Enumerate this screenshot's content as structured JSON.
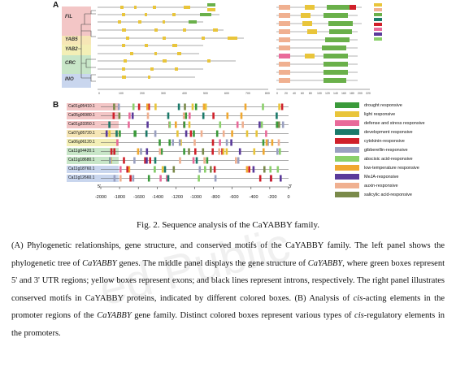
{
  "figure": {
    "panel_a_label": "A",
    "panel_b_label": "B",
    "clades": [
      "FIL",
      "YAB5",
      "YAB2",
      "CRC",
      "INO"
    ],
    "clade_colors": [
      "#f3c6c6",
      "#f6e6b6",
      "#f3efb6",
      "#c8e6c8",
      "#c9d6ee"
    ],
    "tree_scale_labels": [
      "0",
      "100",
      "200",
      "300",
      "400",
      "500",
      "600",
      "700",
      "800"
    ],
    "motif_scale_labels": [
      "0",
      "20",
      "40",
      "60",
      "80",
      "100",
      "120",
      "140",
      "160",
      "180",
      "200",
      "220"
    ],
    "gene_ids": [
      "Ca01g05410.1",
      "Ca05g06980.1",
      "Ca01g33350.1",
      "Ca07g05720.1",
      "Ca06g06120.1",
      "Ca11g04420.1",
      "Ca11g18680.1",
      "Ca11g18760.1",
      "Ca11g12660.1"
    ],
    "gene_label_colors": [
      "#f3c6c6",
      "#f3c6c6",
      "#f3c6c6",
      "#f6e6b6",
      "#f3efb6",
      "#c8e6c8",
      "#c8e6c8",
      "#c9d6ee",
      "#c9d6ee"
    ],
    "legend": [
      {
        "label": "drought responsive",
        "color": "#3a9a3a"
      },
      {
        "label": "light responsive",
        "color": "#e9c53a"
      },
      {
        "label": "defense and stress responsive",
        "color": "#e96a9a"
      },
      {
        "label": "development responsive",
        "color": "#1a7a6a"
      },
      {
        "label": "cytokinin-responsive",
        "color": "#d0202a"
      },
      {
        "label": "gibberellin-responsive",
        "color": "#9aa0c0"
      },
      {
        "label": "abscisic acid-responsive",
        "color": "#8ad06a"
      },
      {
        "label": "low-temperature responsive",
        "color": "#f0a830"
      },
      {
        "label": "MeJA-responsive",
        "color": "#5a3a9a"
      },
      {
        "label": "auxin-responsive",
        "color": "#f0b090"
      },
      {
        "label": "salicylic acid-responsive",
        "color": "#7a8a4a"
      }
    ],
    "x_axis_labels": [
      "-2000",
      "-1800",
      "-1600",
      "-1400",
      "-1200",
      "-1000",
      "-800",
      "-600",
      "-400",
      "-200",
      "0"
    ],
    "five_prime": "5'",
    "three_prime": "3'"
  },
  "caption": {
    "title": "Fig. 2. Sequence analysis of the CaYABBY family.",
    "p1": "(A) Phylogenetic relationships, gene structure, and conserved motifs of the CaYABBY family. The left panel shows the phylogenetic tree of ",
    "g1": "CaYABBY",
    "p2": " genes. The middle panel displays the gene structure of ",
    "g2": "CaYABBY",
    "p3": ", where green boxes represent 5' and 3' UTR regions; yellow boxes represent exons; and black lines represent introns, respectively. The right panel illustrates conserved motifs in CaYABBY proteins, indicated by different colored boxes. (B) Analysis of ",
    "g3": "cis",
    "p4": "-acting elements in the promoter regions of the ",
    "g4": "CaYABBY",
    "p5": " gene family. Distinct colored boxes represent various types of ",
    "g5": "cis",
    "p6": "-regulatory elements in the promoters."
  },
  "watermark": "ed Public"
}
